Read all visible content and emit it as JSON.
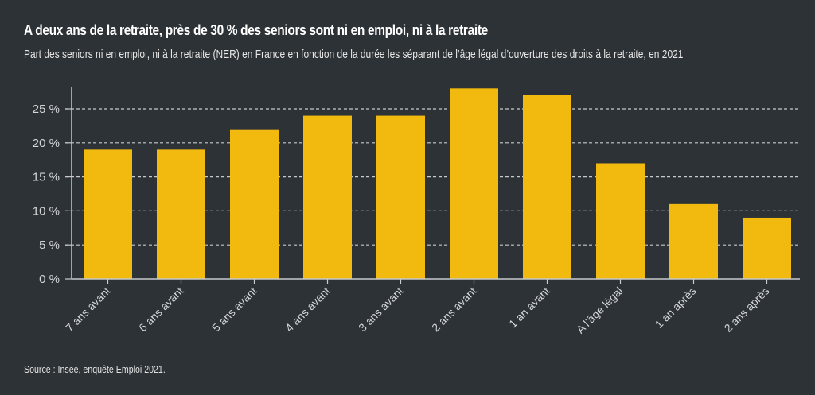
{
  "chart_data": {
    "type": "bar",
    "title": "A deux ans de la retraite, près de 30 % des seniors sont ni en emploi, ni à la retraite",
    "subtitle": "Part des seniors ni en emploi, ni à la retraite (NER) en France en fonction de la durée les séparant de l’âge légal d’ouverture des droits à la retraite, en 2021",
    "source": "Source : Insee, enquête Emploi 2021.",
    "xlabel": "",
    "ylabel": "",
    "categories": [
      "7 ans avant",
      "6 ans avant",
      "5 ans avant",
      "4 ans avant",
      "3 ans avant",
      "2 ans avant",
      "1 an avant",
      "A l’âge légal",
      "1 an après",
      "2 ans après"
    ],
    "values": [
      19,
      19,
      22,
      24,
      24,
      28,
      27,
      17,
      11,
      9
    ],
    "unit": "%",
    "ylim": [
      0,
      30
    ],
    "yticks": [
      0,
      5,
      10,
      15,
      20,
      25
    ],
    "ytick_labels": [
      "0 %",
      "5 %",
      "10 %",
      "15 %",
      "20 %",
      "25 %"
    ],
    "grid": "horizontal dashed",
    "legend": "none",
    "colors": {
      "bar": "#f2b90f",
      "background": "#2d3236",
      "axis": "#c8cacc",
      "grid": "#c8cacc"
    }
  }
}
